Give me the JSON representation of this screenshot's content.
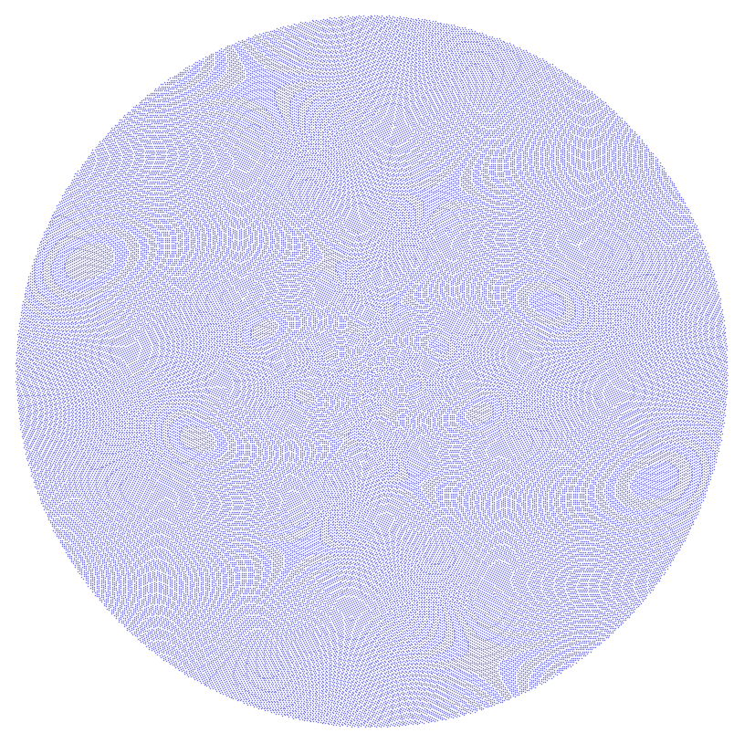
{
  "figure": {
    "kind": "phyllotaxis-dot-disc",
    "background_color": "#ffffff",
    "dot_color": "#0000cc",
    "visible_text": []
  }
}
